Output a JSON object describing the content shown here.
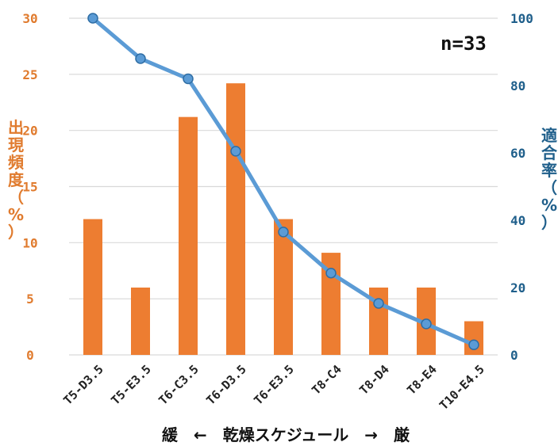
{
  "chart_data": {
    "type": "bar",
    "categories": [
      "T5-D3.5",
      "T5-E3.5",
      "T6-C3.5",
      "T6-D3.5",
      "T6-E3.5",
      "T8-C4",
      "T8-D4",
      "T8-E4",
      "T10-E4.5"
    ],
    "series": [
      {
        "type": "bar",
        "axis": "left",
        "values": [
          12.1,
          6.0,
          21.2,
          24.2,
          12.1,
          9.1,
          6.0,
          6.0,
          3.0
        ]
      },
      {
        "type": "line",
        "axis": "right",
        "values": [
          100,
          88,
          82,
          60.5,
          36.5,
          24.3,
          15.3,
          9.2,
          3.0
        ]
      }
    ],
    "ylabel": "出現頻度（%）",
    "y2label": "適合率（%）",
    "xlabel": "緩　←　乾燥スケジュール　→　厳",
    "annotation": "n=33",
    "ylim": [
      0,
      30
    ],
    "y2lim": [
      0,
      100
    ],
    "yticks": [
      0,
      5,
      10,
      15,
      20,
      25,
      30
    ],
    "y2ticks": [
      0,
      20,
      40,
      60,
      80,
      100
    ],
    "grid": true,
    "colors": {
      "bar": "#ed7d31",
      "line": "#5b9bd5",
      "marker_edge": "#2e6da4",
      "left_axis": "#e07b2e",
      "right_axis": "#1f5f8b",
      "grid": "#d9d9d9"
    }
  }
}
